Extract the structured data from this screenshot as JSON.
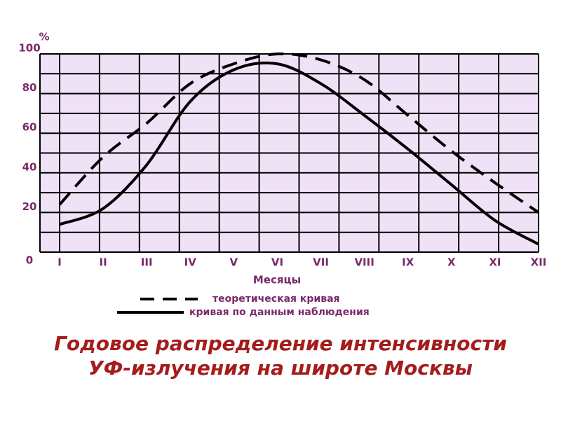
{
  "chart_data": {
    "type": "line",
    "title": [
      "Годовое распределение интенсивности",
      "УФ-излучения на широте Москвы"
    ],
    "y_label": "%",
    "x_label": "Месяцы",
    "categories": [
      "I",
      "II",
      "III",
      "IV",
      "V",
      "VI",
      "VII",
      "VIII",
      "IX",
      "X",
      "XI",
      "XII"
    ],
    "series": [
      {
        "name": "теоретическая кривая",
        "color": "#000000",
        "dash": true,
        "values": [
          24,
          48,
          65,
          85,
          95,
          100,
          97,
          87,
          69,
          51,
          35,
          20
        ]
      },
      {
        "name": "кривая по данным наблюдения",
        "color": "#000000",
        "dash": false,
        "values": [
          14,
          22,
          44,
          76,
          92,
          95,
          85,
          69,
          52,
          34,
          16,
          4
        ]
      }
    ],
    "ylim": [
      0,
      100
    ],
    "yticks": [
      0,
      20,
      40,
      60,
      80,
      100
    ],
    "grid": true
  }
}
